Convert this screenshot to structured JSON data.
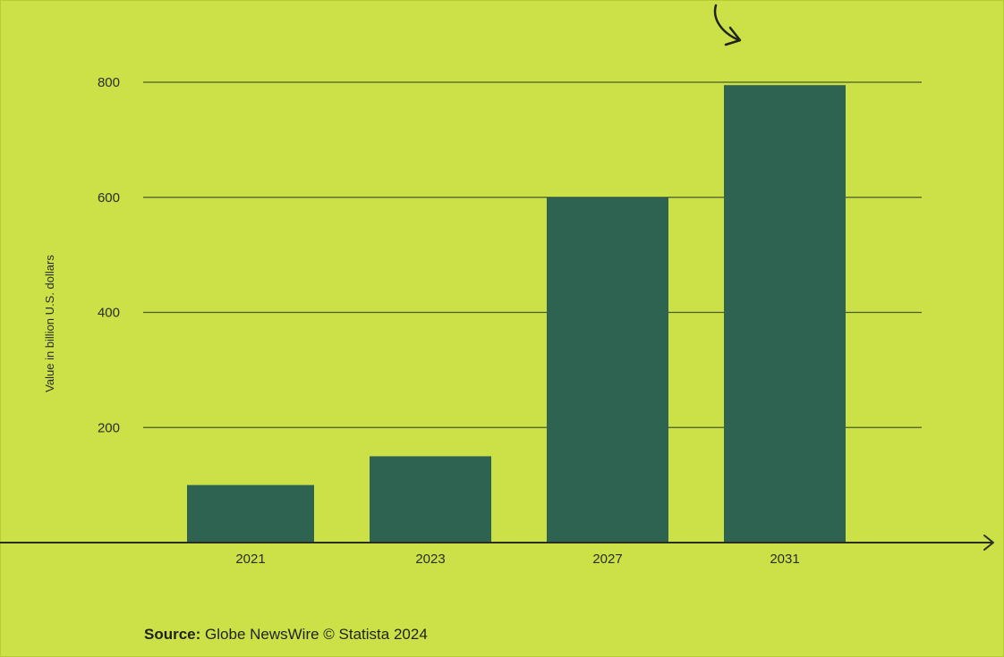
{
  "chart_data": {
    "type": "bar",
    "categories": [
      "2021",
      "2023",
      "2027",
      "2031"
    ],
    "values": [
      100,
      150,
      600,
      795
    ],
    "ylabel": "Value in billion U.S. dollars",
    "ylim": [
      0,
      800
    ],
    "yticks": [
      200,
      400,
      600,
      800
    ],
    "grid": true,
    "colors": {
      "background": "#cce147",
      "bar": "#2d6350",
      "grid": "#4a5a2a",
      "axis": "#2a2e22"
    }
  },
  "source": {
    "label": "Source:",
    "text": "Globe NewsWire © Statista 2024"
  }
}
